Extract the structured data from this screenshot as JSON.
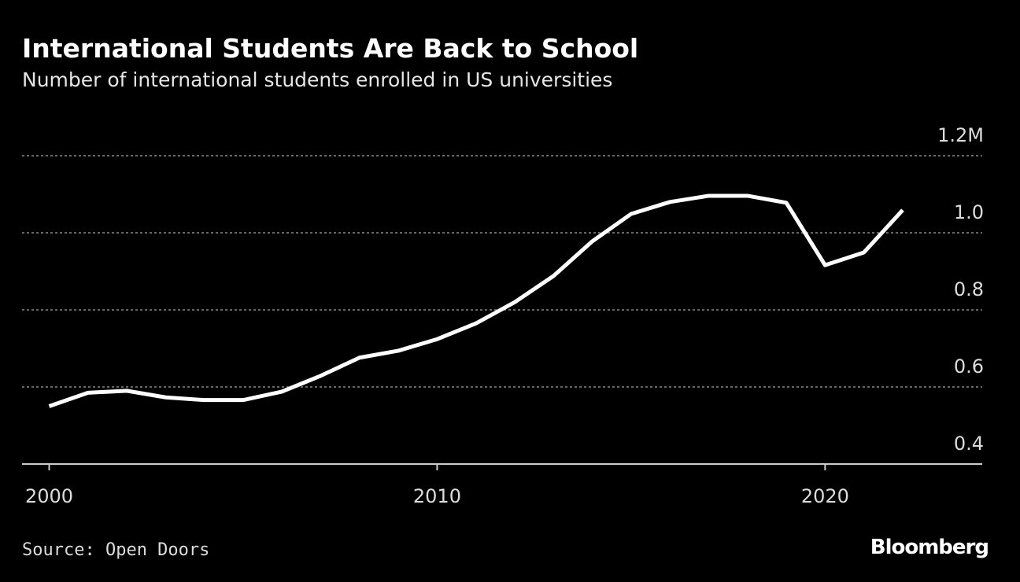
{
  "chart_data": {
    "type": "line",
    "title": "International Students Are Back to School",
    "subtitle": "Number of international students enrolled in US universities",
    "source": "Source: Open Doors",
    "brand": "Bloomberg",
    "x": [
      2000,
      2001,
      2002,
      2003,
      2004,
      2005,
      2006,
      2007,
      2008,
      2009,
      2010,
      2011,
      2012,
      2013,
      2014,
      2015,
      2016,
      2017,
      2018,
      2019,
      2020,
      2021,
      2022
    ],
    "series": [
      {
        "name": "International students",
        "color": "#ffffff",
        "values": [
          0.55,
          0.585,
          0.59,
          0.573,
          0.566,
          0.566,
          0.588,
          0.629,
          0.676,
          0.694,
          0.724,
          0.765,
          0.82,
          0.888,
          0.978,
          1.049,
          1.08,
          1.096,
          1.096,
          1.078,
          0.916,
          0.949,
          1.059
        ]
      }
    ],
    "xlim": [
      1999.3,
      2024.05
    ],
    "xticks": [
      2000,
      2010,
      2020
    ],
    "ylim": [
      0.4,
      1.2
    ],
    "yticks": [
      0.4,
      0.6,
      0.8,
      {
        "value": 1.0,
        "label": "1.0"
      },
      {
        "value": 1.2,
        "label": "1.2M"
      }
    ],
    "grid": true
  }
}
